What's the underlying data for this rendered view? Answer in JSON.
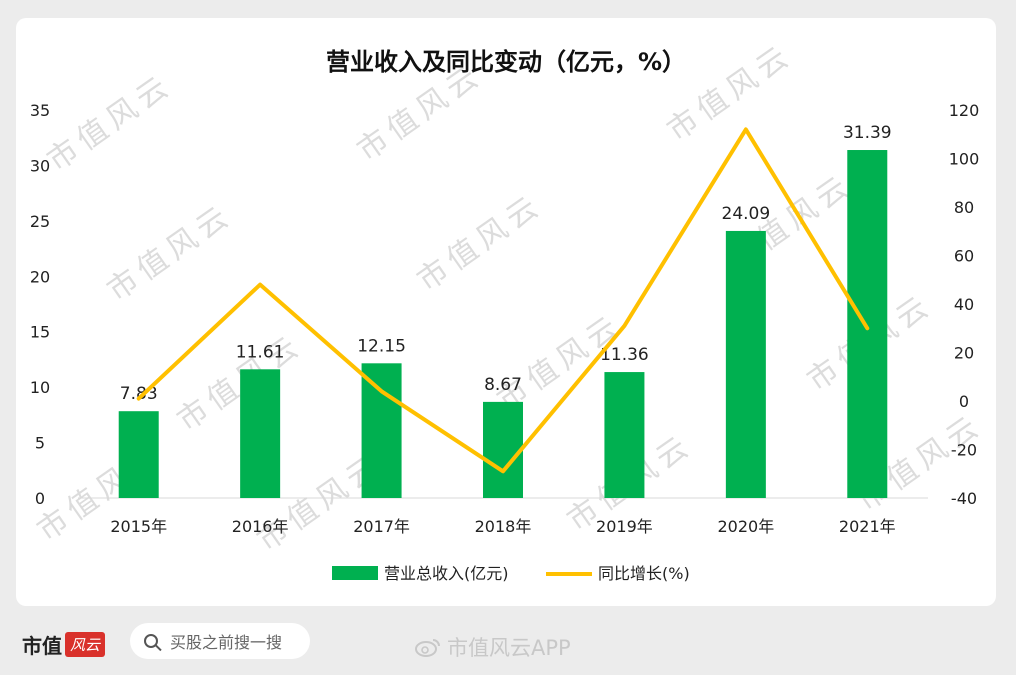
{
  "chart_data": {
    "type": "bar",
    "title": "营业收入及同比变动（亿元，%）",
    "categories": [
      "2015年",
      "2016年",
      "2017年",
      "2018年",
      "2019年",
      "2020年",
      "2021年"
    ],
    "series": [
      {
        "name": "营业总收入(亿元)",
        "type": "bar",
        "axis": "left",
        "color": "#00b050",
        "values": [
          7.83,
          11.61,
          12.15,
          8.67,
          11.36,
          24.09,
          31.39
        ],
        "labels": [
          "7.83",
          "11.61",
          "12.15",
          "8.67",
          "11.36",
          "24.09",
          "31.39"
        ]
      },
      {
        "name": "同比增长(%)",
        "type": "line",
        "axis": "right",
        "color": "#ffc000",
        "values": [
          1,
          48,
          4,
          -29,
          31,
          112,
          30
        ]
      }
    ],
    "y_left": {
      "min": 0,
      "max": 35,
      "ticks": [
        "0",
        "5",
        "10",
        "15",
        "20",
        "25",
        "30",
        "35"
      ]
    },
    "y_right": {
      "min": -40,
      "max": 120,
      "ticks": [
        "-40",
        "-20",
        "0",
        "20",
        "40",
        "60",
        "80",
        "100",
        "120"
      ]
    },
    "grid": false,
    "legend": "bottom"
  },
  "watermark": "市值风云",
  "footer": {
    "logo_text": "市值",
    "logo_badge": "风云",
    "search_placeholder": "买股之前搜一搜",
    "weibo_text": "市值风云APP"
  }
}
